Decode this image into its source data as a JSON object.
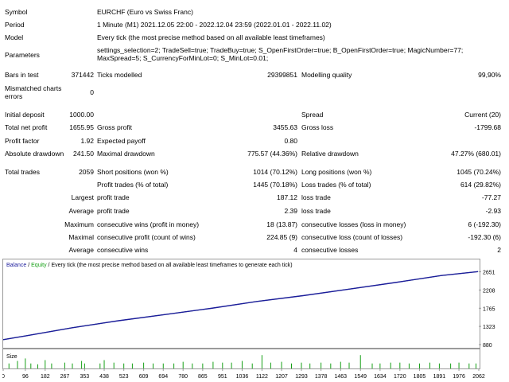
{
  "report": {
    "symbol_label": "Symbol",
    "symbol_value": "EURCHF (Euro vs Swiss Franc)",
    "period_label": "Period",
    "period_value": "1 Minute (M1) 2021.12.05 22:00 - 2022.12.04 23:59 (2022.01.01 - 2022.11.02)",
    "model_label": "Model",
    "model_value": "Every tick (the most precise method based on all available least timeframes)",
    "parameters_label": "Parameters",
    "parameters_value": "settings_selection=2; TradeSell=true; TradeBuy=true; S_OpenFirstOrder=true; B_OpenFirstOrder=true; MagicNumber=77; MaxSpread=5; S_CurrencyForMinLot=0; S_MinLot=0.01;",
    "bars_label": "Bars in test",
    "bars_value": "371442",
    "ticks_label": "Ticks modelled",
    "ticks_value": "29399851",
    "quality_label": "Modelling quality",
    "quality_value": "99,90%",
    "mismatch_label": "Mismatched charts errors",
    "mismatch_value": "0",
    "deposit_label": "Initial deposit",
    "deposit_value": "1000.00",
    "spread_label": "Spread",
    "spread_value": "Current (20)",
    "netprofit_label": "Total net profit",
    "netprofit_value": "1655.95",
    "grossprofit_label": "Gross profit",
    "grossprofit_value": "3455.63",
    "grossloss_label": "Gross loss",
    "grossloss_value": "-1799.68",
    "pf_label": "Profit factor",
    "pf_value": "1.92",
    "payoff_label": "Expected payoff",
    "payoff_value": "0.80",
    "absdd_label": "Absolute drawdown",
    "absdd_value": "241.50",
    "maxdd_label": "Maximal drawdown",
    "maxdd_value": "775.57 (44.36%)",
    "reldd_label": "Relative drawdown",
    "reldd_value": "47.27% (680.01)",
    "trades_label": "Total trades",
    "trades_value": "2059",
    "short_label": "Short positions (won %)",
    "short_value": "1014 (70.12%)",
    "long_label": "Long positions (won %)",
    "long_value": "1045 (70.24%)",
    "pt_label": "Profit trades (% of total)",
    "pt_value": "1445 (70.18%)",
    "lt_label": "Loss trades (% of total)",
    "lt_value": "614 (29.82%)",
    "largest_label": "Largest",
    "largest_pt_label": "profit trade",
    "largest_pt_value": "187.12",
    "largest_lt_label": "loss trade",
    "largest_lt_value": "-77.27",
    "average_label": "Average",
    "average_pt_label": "profit trade",
    "average_pt_value": "2.39",
    "average_lt_label": "loss trade",
    "average_lt_value": "-2.93",
    "maximum_label": "Maximum",
    "max_cw_label": "consecutive wins (profit in money)",
    "max_cw_value": "18 (13.87)",
    "max_cl_label": "consecutive losses (loss in money)",
    "max_cl_value": "6 (-192.30)",
    "maximal_label": "Maximal",
    "mxl_cp_label": "consecutive profit (count of wins)",
    "mxl_cp_value": "224.85 (9)",
    "mxl_cl_label": "consecutive loss (count of losses)",
    "mxl_cl_value": "-192.30 (6)",
    "average2_label": "Average",
    "avg_cw_label": "consecutive wins",
    "avg_cw_value": "4",
    "avg_cl_label": "consecutive losses",
    "avg_cl_value": "2"
  },
  "chart": {
    "legend_balance": "Balance",
    "legend_sep": " / ",
    "legend_equity": "Equity",
    "legend_desc": " / Every tick (the most precise method based on all available least timeframes to generate each tick)",
    "size_label": "Size",
    "colors": {
      "balance": "#1c1c9c",
      "equity": "#16a016",
      "border": "#9a9a9a",
      "text": "#000000"
    }
  },
  "chart_data": {
    "type": "line",
    "series": [
      {
        "name": "Balance",
        "x": [
          0,
          100,
          300,
          500,
          700,
          900,
          1100,
          1300,
          1500,
          1700,
          1900,
          2059
        ],
        "values": [
          1000,
          1095,
          1290,
          1460,
          1610,
          1760,
          1930,
          2070,
          2230,
          2390,
          2560,
          2656
        ]
      },
      {
        "name": "Equity",
        "x": [
          0,
          100,
          300,
          500,
          700,
          900,
          1100,
          1300,
          1500,
          1700,
          1900,
          2059
        ],
        "values": [
          1000,
          1095,
          1290,
          1460,
          1610,
          1760,
          1930,
          2070,
          2230,
          2390,
          2560,
          2656
        ]
      }
    ],
    "y_ticks": [
      "2651",
      "2208",
      "1765",
      "1323",
      "880"
    ],
    "x_ticks": [
      "0",
      "96",
      "182",
      "267",
      "353",
      "438",
      "523",
      "609",
      "694",
      "780",
      "865",
      "951",
      "1036",
      "1122",
      "1207",
      "1293",
      "1378",
      "1463",
      "1549",
      "1634",
      "1720",
      "1805",
      "1891",
      "1976",
      "2062"
    ],
    "ylim": [
      880,
      2700
    ],
    "xlim": [
      0,
      2062
    ],
    "size_bars": [
      [
        25,
        0.3
      ],
      [
        62,
        0.45
      ],
      [
        96,
        0.6
      ],
      [
        120,
        0.3
      ],
      [
        150,
        0.25
      ],
      [
        182,
        0.5
      ],
      [
        210,
        0.3
      ],
      [
        267,
        0.35
      ],
      [
        300,
        0.3
      ],
      [
        340,
        0.45
      ],
      [
        353,
        0.3
      ],
      [
        420,
        0.3
      ],
      [
        438,
        0.5
      ],
      [
        480,
        0.35
      ],
      [
        523,
        0.3
      ],
      [
        560,
        0.3
      ],
      [
        609,
        0.35
      ],
      [
        650,
        0.3
      ],
      [
        694,
        0.3
      ],
      [
        740,
        0.3
      ],
      [
        780,
        0.4
      ],
      [
        820,
        0.3
      ],
      [
        865,
        0.3
      ],
      [
        910,
        0.4
      ],
      [
        951,
        0.35
      ],
      [
        990,
        0.35
      ],
      [
        1036,
        0.45
      ],
      [
        1080,
        0.3
      ],
      [
        1122,
        0.8
      ],
      [
        1160,
        0.35
      ],
      [
        1207,
        0.4
      ],
      [
        1250,
        0.3
      ],
      [
        1293,
        0.35
      ],
      [
        1330,
        0.3
      ],
      [
        1378,
        0.35
      ],
      [
        1420,
        0.3
      ],
      [
        1463,
        0.4
      ],
      [
        1500,
        0.35
      ],
      [
        1549,
        0.8
      ],
      [
        1600,
        0.3
      ],
      [
        1634,
        0.3
      ],
      [
        1680,
        0.35
      ],
      [
        1720,
        0.35
      ],
      [
        1760,
        0.3
      ],
      [
        1805,
        0.3
      ],
      [
        1850,
        0.35
      ],
      [
        1891,
        0.3
      ],
      [
        1940,
        0.3
      ],
      [
        1976,
        0.35
      ],
      [
        2020,
        0.3
      ],
      [
        2050,
        0.3
      ]
    ]
  }
}
